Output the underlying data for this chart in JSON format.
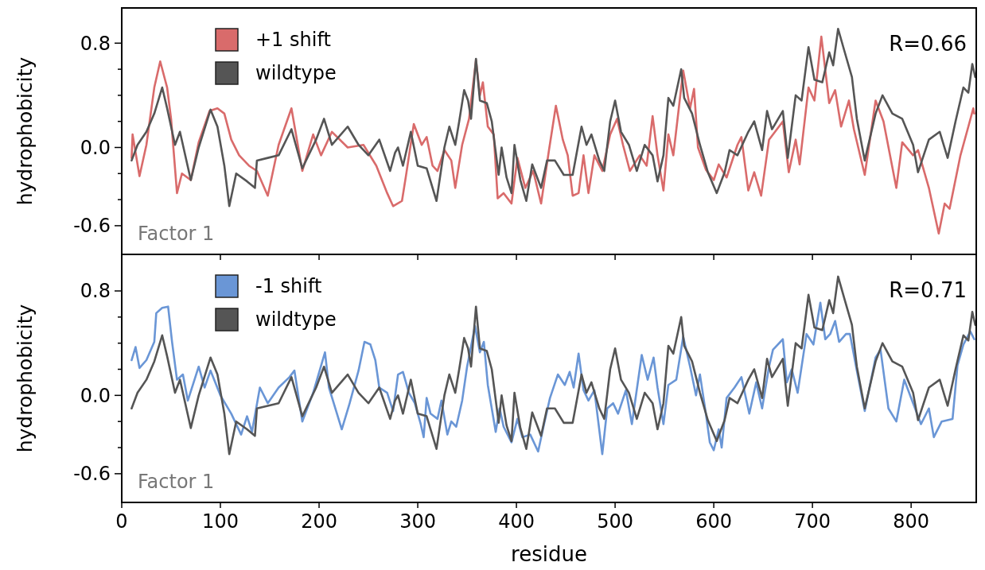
{
  "chart_data": [
    {
      "type": "line",
      "ylabel": "hydrophobicity",
      "annotations": [
        "Factor 1",
        "R=0.66"
      ],
      "legend": "top left",
      "tick_labels": "y",
      "xlim": [
        0,
        866
      ],
      "ylim": [
        -0.82,
        1.07
      ],
      "xticks": [
        {
          "value": 0,
          "label": null
        },
        {
          "value": 100,
          "label": null
        },
        {
          "value": 200,
          "label": null
        },
        {
          "value": 300,
          "label": null
        },
        {
          "value": 400,
          "label": null
        },
        {
          "value": 500,
          "label": null
        },
        {
          "value": 600,
          "label": null
        },
        {
          "value": 700,
          "label": null
        },
        {
          "value": 800,
          "label": null
        }
      ],
      "yticks": [
        {
          "value": -0.6,
          "label": "-0.6"
        },
        {
          "value": -0.4,
          "label": null
        },
        {
          "value": -0.2,
          "label": null
        },
        {
          "value": 0,
          "label": "0.0"
        },
        {
          "value": 0.2,
          "label": null
        },
        {
          "value": 0.4,
          "label": null
        },
        {
          "value": 0.6,
          "label": null
        },
        {
          "value": 0.8,
          "label": "0.8"
        }
      ],
      "series": [
        {
          "name": "+1 shift",
          "color": "#d96b6b",
          "x": [
            10,
            11,
            18,
            25,
            33,
            39,
            46,
            50,
            56,
            61,
            70,
            78,
            89,
            97,
            104,
            111,
            119,
            129,
            137,
            148,
            159,
            172,
            183,
            194,
            202,
            213,
            229,
            245,
            258,
            269,
            275,
            284,
            288,
            296,
            304,
            309,
            315,
            320,
            327,
            334,
            338,
            345,
            352,
            359,
            363,
            366,
            371,
            377,
            381,
            387,
            395,
            401,
            409,
            417,
            425,
            433,
            440,
            447,
            452,
            457,
            463,
            468,
            473,
            479,
            487,
            495,
            502,
            508,
            515,
            525,
            532,
            538,
            543,
            549,
            554,
            559,
            569,
            576,
            580,
            584,
            592,
            600,
            605,
            613,
            624,
            628,
            635,
            641,
            648,
            656,
            670,
            676,
            683,
            687,
            696,
            702,
            709,
            717,
            723,
            729,
            737,
            742,
            753,
            764,
            772,
            785,
            791,
            802,
            807,
            818,
            828,
            834,
            839,
            850,
            858,
            863,
            864
          ],
          "values": [
            -0.08,
            0.1,
            -0.22,
            0.02,
            0.46,
            0.66,
            0.46,
            0.22,
            -0.35,
            -0.2,
            -0.25,
            0.04,
            0.28,
            0.3,
            0.26,
            0.06,
            -0.06,
            -0.14,
            -0.18,
            -0.37,
            0.02,
            0.3,
            -0.18,
            0.1,
            -0.06,
            0.12,
            0,
            0.02,
            -0.14,
            -0.35,
            -0.45,
            -0.41,
            -0.22,
            0.18,
            0.02,
            0.08,
            -0.14,
            -0.18,
            -0.02,
            -0.1,
            -0.31,
            0.02,
            0.22,
            0.67,
            0.4,
            0.5,
            0.16,
            0.1,
            -0.39,
            -0.35,
            -0.43,
            -0.08,
            -0.31,
            -0.18,
            -0.43,
            -0.02,
            0.32,
            0.06,
            -0.06,
            -0.37,
            -0.35,
            -0.06,
            -0.35,
            -0.06,
            -0.18,
            0.1,
            0.22,
            0.02,
            -0.18,
            -0.06,
            -0.14,
            0.24,
            -0.06,
            -0.33,
            0.1,
            -0.06,
            0.59,
            0.3,
            0.45,
            0,
            -0.17,
            -0.25,
            -0.13,
            -0.23,
            0.02,
            0.08,
            -0.33,
            -0.19,
            -0.37,
            0.06,
            0.2,
            -0.19,
            0.06,
            -0.13,
            0.46,
            0.36,
            0.85,
            0.34,
            0.44,
            0.16,
            0.36,
            0.14,
            -0.21,
            0.36,
            0.2,
            -0.31,
            0.04,
            -0.06,
            -0.02,
            -0.31,
            -0.66,
            -0.43,
            -0.47,
            -0.06,
            0.16,
            0.3,
            0.26
          ]
        },
        {
          "name": "wildtype",
          "color": "#555555",
          "x": [
            10,
            16,
            25,
            33,
            41,
            46,
            54,
            59,
            70,
            78,
            90,
            97,
            104,
            109,
            116,
            127,
            135,
            137,
            148,
            159,
            172,
            183,
            197,
            205,
            213,
            229,
            240,
            250,
            261,
            272,
            277,
            280,
            285,
            293,
            300,
            309,
            319,
            327,
            332,
            338,
            342,
            347,
            351,
            354,
            359,
            363,
            370,
            375,
            382,
            385,
            390,
            395,
            398,
            404,
            410,
            416,
            425,
            431,
            439,
            448,
            457,
            466,
            471,
            476,
            484,
            489,
            495,
            500,
            506,
            514,
            522,
            530,
            538,
            543,
            549,
            554,
            559,
            567,
            570,
            578,
            586,
            594,
            603,
            611,
            616,
            624,
            635,
            641,
            649,
            654,
            659,
            670,
            675,
            683,
            689,
            696,
            702,
            710,
            717,
            721,
            726,
            732,
            740,
            745,
            753,
            764,
            771,
            781,
            791,
            802,
            807,
            818,
            829,
            837,
            845,
            853,
            858,
            862,
            865
          ],
          "values": [
            -0.1,
            0.02,
            0.12,
            0.26,
            0.46,
            0.3,
            0.02,
            0.12,
            -0.25,
            0,
            0.29,
            0.16,
            -0.14,
            -0.45,
            -0.2,
            -0.26,
            -0.31,
            -0.1,
            -0.08,
            -0.06,
            0.14,
            -0.16,
            0.06,
            0.22,
            0.02,
            0.16,
            0.02,
            -0.06,
            0.06,
            -0.18,
            -0.04,
            0,
            -0.14,
            0.12,
            -0.14,
            -0.16,
            -0.41,
            0,
            0.16,
            0.02,
            0.2,
            0.44,
            0.36,
            0.22,
            0.68,
            0.36,
            0.34,
            0.2,
            -0.21,
            0,
            -0.23,
            -0.35,
            0.02,
            -0.25,
            -0.41,
            -0.13,
            -0.31,
            -0.1,
            -0.1,
            -0.21,
            -0.21,
            0.16,
            0.02,
            0.1,
            -0.1,
            -0.18,
            0.2,
            0.36,
            0.12,
            0.02,
            -0.18,
            0.02,
            -0.06,
            -0.26,
            -0.06,
            0.38,
            0.32,
            0.6,
            0.38,
            0.26,
            0.02,
            -0.19,
            -0.35,
            -0.19,
            -0.02,
            -0.06,
            0.12,
            0.2,
            -0.02,
            0.28,
            0.14,
            0.28,
            -0.08,
            0.4,
            0.36,
            0.77,
            0.52,
            0.5,
            0.73,
            0.63,
            0.91,
            0.75,
            0.54,
            0.22,
            -0.1,
            0.26,
            0.4,
            0.26,
            0.22,
            0.02,
            -0.19,
            0.06,
            0.12,
            -0.08,
            0.2,
            0.46,
            0.42,
            0.64,
            0.54
          ]
        }
      ]
    },
    {
      "type": "line",
      "xlabel": "residue",
      "ylabel": "hydrophobicity",
      "annotations": [
        "Factor 1",
        "R=0.71"
      ],
      "legend": "top left",
      "xlim": [
        0,
        866
      ],
      "ylim": [
        -0.82,
        1.08
      ],
      "xticks": [
        0,
        100,
        200,
        300,
        400,
        500,
        600,
        700,
        800
      ],
      "yticks": [
        {
          "value": -0.6,
          "label": "-0.6"
        },
        {
          "value": -0.4,
          "label": null
        },
        {
          "value": -0.2,
          "label": null
        },
        {
          "value": 0,
          "label": "0.0"
        },
        {
          "value": 0.2,
          "label": null
        },
        {
          "value": 0.4,
          "label": null
        },
        {
          "value": 0.6,
          "label": null
        },
        {
          "value": 0.8,
          "label": "0.8"
        }
      ],
      "series": [
        {
          "name": "-1 shift",
          "color": "#6a96d6",
          "x": [
            10,
            14,
            18,
            25,
            33,
            35,
            41,
            47,
            51,
            56,
            62,
            67,
            78,
            84,
            90,
            100,
            111,
            121,
            127,
            132,
            140,
            148,
            159,
            170,
            175,
            183,
            194,
            206,
            210,
            223,
            231,
            240,
            246,
            252,
            257,
            261,
            269,
            275,
            280,
            285,
            291,
            297,
            303,
            306,
            309,
            313,
            320,
            324,
            330,
            334,
            339,
            345,
            350,
            358,
            363,
            367,
            371,
            379,
            383,
            387,
            395,
            401,
            406,
            414,
            422,
            428,
            434,
            442,
            449,
            454,
            458,
            463,
            468,
            473,
            479,
            487,
            492,
            498,
            503,
            511,
            517,
            527,
            533,
            539,
            543,
            549,
            554,
            562,
            569,
            576,
            582,
            586,
            592,
            596,
            600,
            605,
            608,
            613,
            621,
            628,
            636,
            643,
            649,
            656,
            660,
            670,
            674,
            679,
            685,
            694,
            701,
            708,
            713,
            718,
            723,
            727,
            734,
            738,
            745,
            753,
            764,
            769,
            777,
            785,
            793,
            802,
            810,
            818,
            823,
            831,
            842,
            847,
            853,
            860,
            864
          ],
          "values": [
            0.27,
            0.37,
            0.21,
            0.27,
            0.41,
            0.63,
            0.67,
            0.68,
            0.41,
            0.12,
            0.16,
            -0.04,
            0.22,
            0.06,
            0.19,
            0,
            -0.14,
            -0.3,
            -0.16,
            -0.28,
            0.06,
            -0.06,
            0.06,
            0.14,
            0.19,
            -0.2,
            0.02,
            0.33,
            0.06,
            -0.26,
            -0.06,
            0.19,
            0.41,
            0.39,
            0.27,
            0.06,
            0.02,
            -0.12,
            0.16,
            0.18,
            0.02,
            -0.06,
            -0.22,
            -0.32,
            -0.02,
            -0.14,
            -0.18,
            -0.04,
            -0.3,
            -0.2,
            -0.24,
            -0.04,
            0.22,
            0.53,
            0.33,
            0.41,
            0.08,
            -0.28,
            -0.1,
            -0.24,
            -0.36,
            -0.18,
            -0.32,
            -0.3,
            -0.43,
            -0.22,
            -0.02,
            0.16,
            0.08,
            0.18,
            0.06,
            0.32,
            0.04,
            -0.04,
            0.04,
            -0.45,
            -0.1,
            -0.06,
            -0.14,
            0.04,
            -0.22,
            0.31,
            0.12,
            0.29,
            0.06,
            -0.22,
            0.08,
            0.12,
            0.45,
            0.22,
            0,
            0.16,
            -0.14,
            -0.36,
            -0.42,
            -0.26,
            -0.4,
            -0.02,
            0.06,
            0.14,
            -0.14,
            0.1,
            -0.1,
            0.22,
            0.35,
            0.43,
            0.1,
            0.2,
            0.02,
            0.47,
            0.39,
            0.71,
            0.43,
            0.47,
            0.57,
            0.41,
            0.47,
            0.47,
            0.19,
            -0.12,
            0.29,
            0.35,
            -0.1,
            -0.2,
            0.12,
            -0.06,
            -0.22,
            -0.1,
            -0.32,
            -0.2,
            -0.18,
            0.23,
            0.39,
            0.49,
            0.43
          ]
        },
        {
          "name": "wildtype",
          "color": "#555555",
          "x": [
            10,
            16,
            25,
            33,
            41,
            46,
            54,
            59,
            70,
            78,
            90,
            97,
            104,
            109,
            116,
            127,
            135,
            137,
            148,
            159,
            172,
            183,
            197,
            205,
            213,
            229,
            240,
            250,
            261,
            272,
            277,
            280,
            285,
            293,
            300,
            309,
            319,
            327,
            332,
            338,
            342,
            347,
            351,
            354,
            359,
            363,
            370,
            375,
            382,
            385,
            390,
            395,
            398,
            404,
            410,
            416,
            425,
            431,
            439,
            448,
            457,
            466,
            471,
            476,
            484,
            489,
            495,
            500,
            506,
            514,
            522,
            530,
            538,
            543,
            549,
            554,
            559,
            567,
            570,
            578,
            586,
            594,
            603,
            611,
            616,
            624,
            635,
            641,
            649,
            654,
            659,
            670,
            675,
            683,
            689,
            696,
            702,
            710,
            717,
            721,
            726,
            732,
            740,
            745,
            753,
            764,
            771,
            781,
            791,
            802,
            807,
            818,
            829,
            837,
            845,
            853,
            858,
            862,
            865
          ],
          "values": [
            -0.1,
            0.02,
            0.12,
            0.26,
            0.46,
            0.3,
            0.02,
            0.12,
            -0.25,
            0,
            0.29,
            0.16,
            -0.14,
            -0.45,
            -0.2,
            -0.26,
            -0.31,
            -0.1,
            -0.08,
            -0.06,
            0.14,
            -0.16,
            0.06,
            0.22,
            0.02,
            0.16,
            0.02,
            -0.06,
            0.06,
            -0.18,
            -0.04,
            0,
            -0.14,
            0.12,
            -0.14,
            -0.16,
            -0.41,
            0,
            0.16,
            0.02,
            0.2,
            0.44,
            0.36,
            0.22,
            0.68,
            0.36,
            0.34,
            0.2,
            -0.21,
            0,
            -0.23,
            -0.35,
            0.02,
            -0.25,
            -0.41,
            -0.13,
            -0.31,
            -0.1,
            -0.1,
            -0.21,
            -0.21,
            0.16,
            0.02,
            0.1,
            -0.1,
            -0.18,
            0.2,
            0.36,
            0.12,
            0.02,
            -0.18,
            0.02,
            -0.06,
            -0.26,
            -0.06,
            0.38,
            0.32,
            0.6,
            0.38,
            0.26,
            0.02,
            -0.19,
            -0.35,
            -0.19,
            -0.02,
            -0.06,
            0.12,
            0.2,
            -0.02,
            0.28,
            0.14,
            0.28,
            -0.08,
            0.4,
            0.36,
            0.77,
            0.52,
            0.5,
            0.73,
            0.63,
            0.91,
            0.75,
            0.54,
            0.22,
            -0.1,
            0.26,
            0.4,
            0.26,
            0.22,
            0.02,
            -0.19,
            0.06,
            0.12,
            -0.08,
            0.2,
            0.46,
            0.42,
            0.64,
            0.54
          ]
        }
      ]
    }
  ]
}
